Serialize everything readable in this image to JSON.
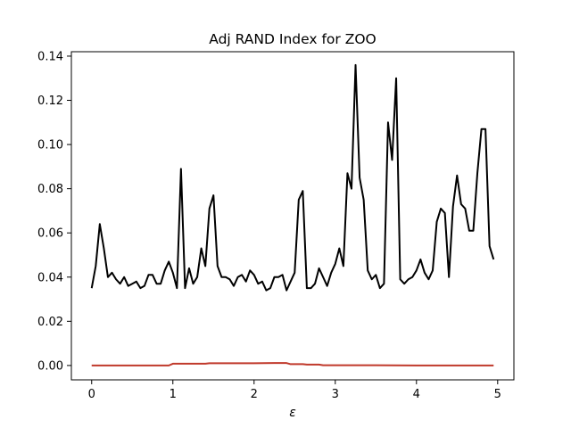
{
  "chart_data": {
    "type": "line",
    "title": "Adj RAND Index for ZOO",
    "xlabel": "ε",
    "ylabel": "",
    "xlim": [
      -0.25,
      5.2
    ],
    "ylim": [
      -0.0065,
      0.142
    ],
    "x_ticks": [
      0,
      1,
      2,
      3,
      4,
      5
    ],
    "x_tick_labels": [
      "0",
      "1",
      "2",
      "3",
      "4",
      "5"
    ],
    "y_ticks": [
      0.0,
      0.02,
      0.04,
      0.06,
      0.08,
      0.1,
      0.12,
      0.14
    ],
    "y_tick_labels": [
      "0.00",
      "0.02",
      "0.04",
      "0.06",
      "0.08",
      "0.10",
      "0.12",
      "0.14"
    ],
    "grid": false,
    "series": [
      {
        "color": "#000000",
        "x": [
          0.0,
          0.05,
          0.1,
          0.15,
          0.2,
          0.25,
          0.3,
          0.35,
          0.4,
          0.45,
          0.5,
          0.55,
          0.6,
          0.65,
          0.7,
          0.75,
          0.8,
          0.85,
          0.9,
          0.95,
          1.0,
          1.05,
          1.1,
          1.15,
          1.2,
          1.25,
          1.3,
          1.35,
          1.4,
          1.45,
          1.5,
          1.55,
          1.6,
          1.65,
          1.7,
          1.75,
          1.8,
          1.85,
          1.9,
          1.95,
          2.0,
          2.05,
          2.1,
          2.15,
          2.2,
          2.25,
          2.3,
          2.35,
          2.4,
          2.45,
          2.5,
          2.55,
          2.6,
          2.65,
          2.7,
          2.75,
          2.8,
          2.85,
          2.9,
          2.95,
          3.0,
          3.05,
          3.1,
          3.15,
          3.2,
          3.25,
          3.3,
          3.35,
          3.4,
          3.45,
          3.5,
          3.55,
          3.6,
          3.65,
          3.7,
          3.75,
          3.8,
          3.85,
          3.9,
          3.95,
          4.0,
          4.05,
          4.1,
          4.15,
          4.2,
          4.25,
          4.3,
          4.35,
          4.4,
          4.45,
          4.5,
          4.55,
          4.6,
          4.65,
          4.7,
          4.75,
          4.8,
          4.85,
          4.9,
          4.95
        ],
        "values": [
          0.035,
          0.045,
          0.064,
          0.053,
          0.04,
          0.042,
          0.039,
          0.037,
          0.04,
          0.036,
          0.037,
          0.038,
          0.035,
          0.036,
          0.041,
          0.041,
          0.037,
          0.037,
          0.043,
          0.047,
          0.042,
          0.035,
          0.089,
          0.035,
          0.044,
          0.037,
          0.04,
          0.053,
          0.045,
          0.071,
          0.077,
          0.045,
          0.04,
          0.04,
          0.039,
          0.036,
          0.04,
          0.041,
          0.038,
          0.043,
          0.041,
          0.037,
          0.038,
          0.034,
          0.035,
          0.04,
          0.04,
          0.041,
          0.034,
          0.038,
          0.042,
          0.075,
          0.079,
          0.035,
          0.035,
          0.037,
          0.044,
          0.04,
          0.036,
          0.042,
          0.046,
          0.053,
          0.045,
          0.087,
          0.08,
          0.136,
          0.085,
          0.075,
          0.043,
          0.039,
          0.041,
          0.035,
          0.037,
          0.11,
          0.093,
          0.13,
          0.039,
          0.037,
          0.039,
          0.04,
          0.043,
          0.048,
          0.042,
          0.039,
          0.043,
          0.065,
          0.071,
          0.069,
          0.04,
          0.072,
          0.086,
          0.073,
          0.071,
          0.061,
          0.061,
          0.087,
          0.107,
          0.107,
          0.054,
          0.048
        ]
      },
      {
        "color": "#c0392b",
        "x": [
          0.0,
          0.5,
          0.95,
          1.0,
          1.4,
          1.45,
          2.0,
          2.25,
          2.4,
          2.45,
          2.6,
          2.65,
          2.8,
          2.85,
          3.5,
          4.0,
          4.5,
          4.95
        ],
        "values": [
          0.0,
          0.0,
          0.0,
          0.0008,
          0.0008,
          0.001,
          0.001,
          0.0011,
          0.0011,
          0.0006,
          0.0006,
          0.0004,
          0.0004,
          0.0001,
          0.0001,
          0.0,
          0.0,
          0.0
        ]
      }
    ]
  }
}
